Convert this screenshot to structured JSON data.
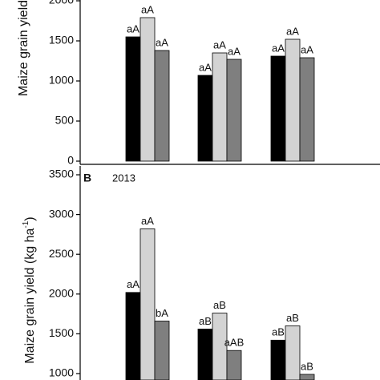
{
  "chart_data": [
    {
      "type": "bar",
      "y_label": "Maize grain yield",
      "categories": [
        null,
        null,
        null
      ],
      "series": [
        {
          "color": "#000000",
          "values": [
            1550,
            1070,
            1310
          ],
          "letters": [
            "aA",
            "aA",
            "aA"
          ]
        },
        {
          "color": "#d3d3d3",
          "values": [
            1790,
            1350,
            1520
          ],
          "letters": [
            "aA",
            "aA",
            "aA"
          ]
        },
        {
          "color": "#7f7f7f",
          "values": [
            1380,
            1270,
            1290
          ],
          "letters": [
            "aA",
            "aA",
            "aA"
          ]
        }
      ],
      "ylim": [
        -40,
        2010
      ],
      "yticks": [
        0,
        500,
        1000,
        1500,
        2000
      ]
    },
    {
      "type": "bar",
      "panel": "B",
      "year": "2013",
      "y_label": "Maize grain yield (kg ha",
      "y_label_sup": "-1",
      "y_label_end": ")",
      "categories": [
        null,
        null,
        null
      ],
      "series": [
        {
          "color": "#000000",
          "values": [
            2020,
            1560,
            1420
          ],
          "letters": [
            "aA",
            "aB",
            "aB"
          ]
        },
        {
          "color": "#d3d3d3",
          "values": [
            2820,
            1760,
            1600
          ],
          "letters": [
            "aA",
            "aB",
            "aB"
          ]
        },
        {
          "color": "#7f7f7f",
          "values": [
            1660,
            1290,
            990
          ],
          "letters": [
            "bA",
            "aAB",
            "aB"
          ]
        }
      ],
      "ylim": [
        919,
        3611
      ],
      "yticks": [
        1000,
        1500,
        2000,
        2500,
        3000,
        3500
      ]
    }
  ]
}
